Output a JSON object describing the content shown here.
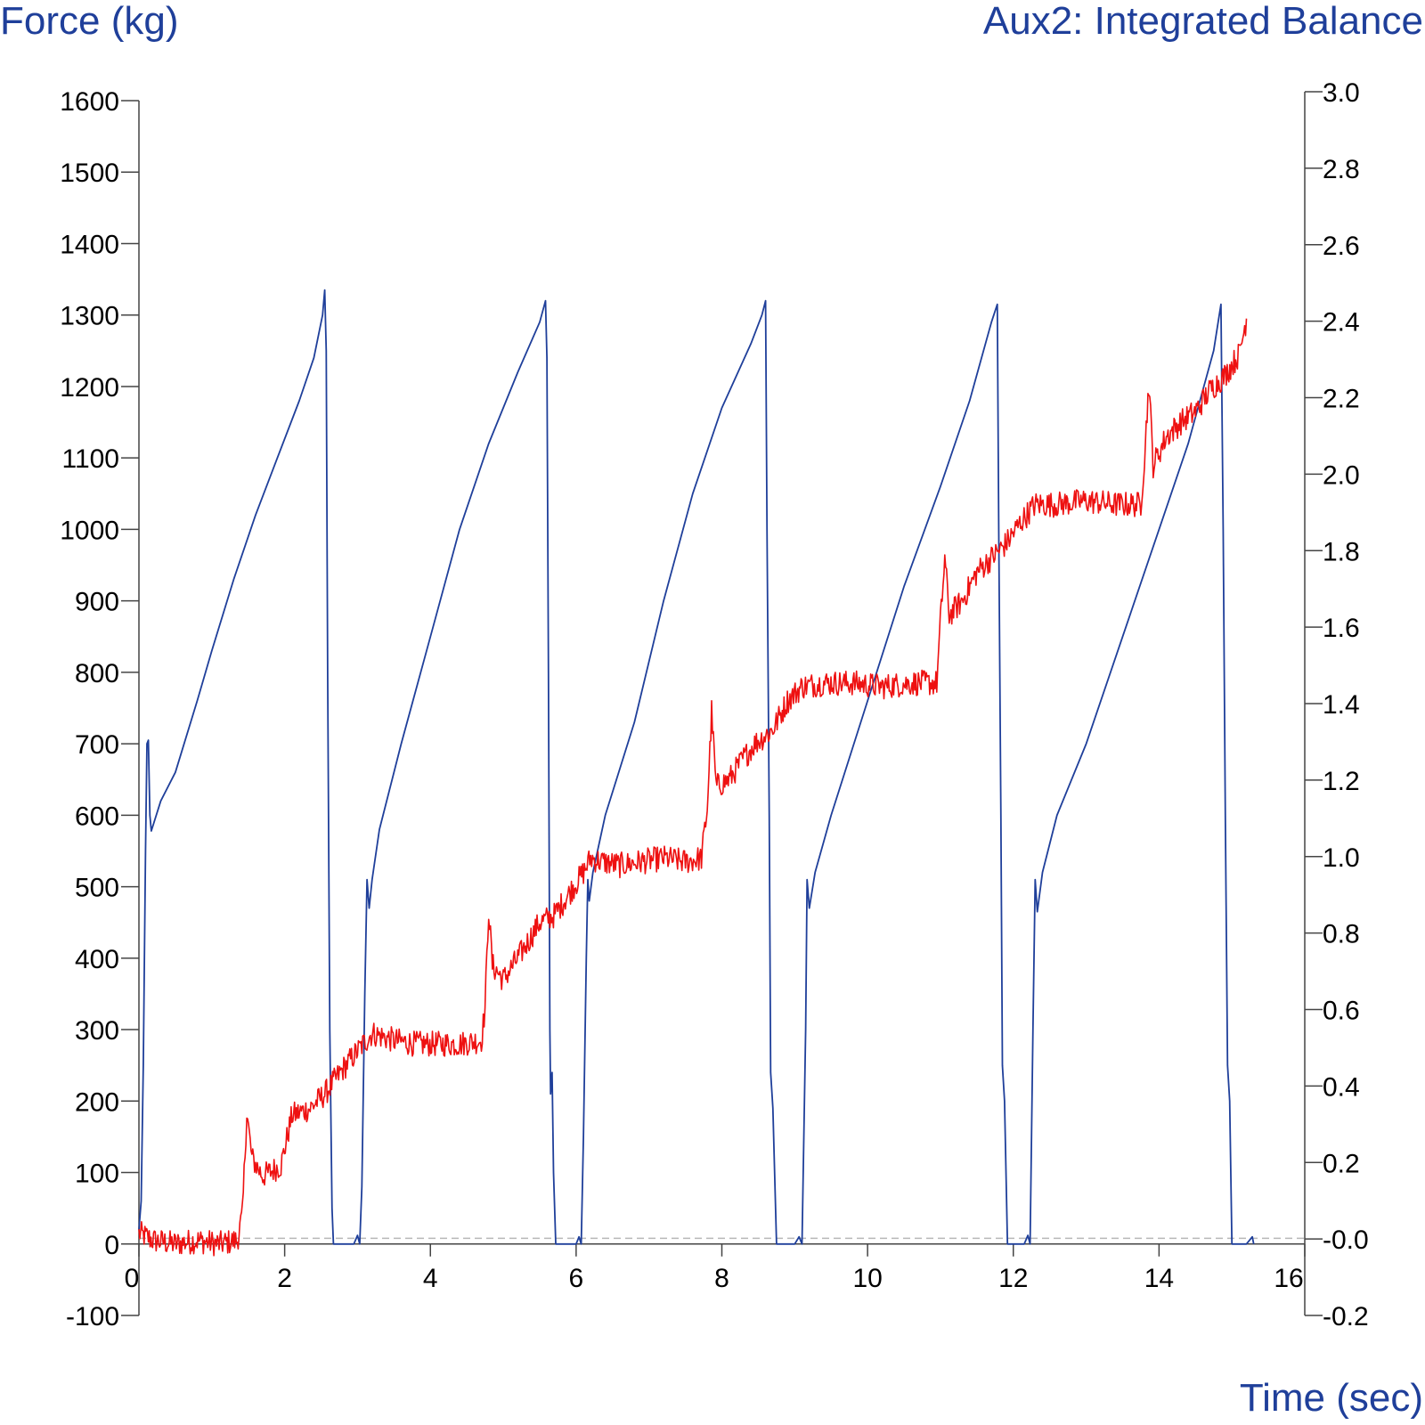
{
  "chart_data": {
    "type": "line",
    "title": "",
    "xlabel": "Time (sec)",
    "ylabel_left": "Force (kg)",
    "ylabel_right": "Aux2: Integrated Balance",
    "xlim": [
      0,
      16
    ],
    "ylim_left": [
      -100,
      1600
    ],
    "ylim_right": [
      -0.2,
      3.0
    ],
    "x_ticks": [
      "0",
      "2",
      "4",
      "6",
      "8",
      "10",
      "12",
      "14",
      "16"
    ],
    "y_left_ticks": [
      "-100",
      "0",
      "100",
      "200",
      "300",
      "400",
      "500",
      "600",
      "700",
      "800",
      "900",
      "1000",
      "1100",
      "1200",
      "1300",
      "1400",
      "1500",
      "1600"
    ],
    "y_right_ticks": [
      "-0.2",
      "-0.0",
      "0.2",
      "0.4",
      "0.6",
      "0.8",
      "1.0",
      "1.2",
      "1.4",
      "1.6",
      "1.8",
      "2.0",
      "2.2",
      "2.4",
      "2.6",
      "2.8",
      "3.0"
    ],
    "grid": false,
    "reference_line": {
      "axis": "left",
      "y": 8,
      "style": "dashed",
      "color": "#b8b8b8"
    },
    "series": [
      {
        "axis": "left",
        "color": "#1f3f9a",
        "points": [
          [
            0.0,
            20
          ],
          [
            0.03,
            60
          ],
          [
            0.06,
            250
          ],
          [
            0.09,
            550
          ],
          [
            0.11,
            700
          ],
          [
            0.13,
            705
          ],
          [
            0.15,
            600
          ],
          [
            0.17,
            578
          ],
          [
            0.3,
            620
          ],
          [
            0.5,
            660
          ],
          [
            0.8,
            760
          ],
          [
            1.0,
            830
          ],
          [
            1.3,
            930
          ],
          [
            1.6,
            1020
          ],
          [
            1.9,
            1100
          ],
          [
            2.2,
            1180
          ],
          [
            2.4,
            1240
          ],
          [
            2.52,
            1300
          ],
          [
            2.55,
            1335
          ],
          [
            2.57,
            1250
          ],
          [
            2.59,
            800
          ],
          [
            2.62,
            300
          ],
          [
            2.65,
            50
          ],
          [
            2.67,
            0
          ],
          [
            2.8,
            0
          ],
          [
            2.95,
            0
          ],
          [
            3.0,
            12
          ],
          [
            3.03,
            0
          ],
          [
            3.06,
            80
          ],
          [
            3.1,
            350
          ],
          [
            3.13,
            510
          ],
          [
            3.16,
            470
          ],
          [
            3.2,
            510
          ],
          [
            3.3,
            580
          ],
          [
            3.6,
            700
          ],
          [
            4.0,
            850
          ],
          [
            4.4,
            1000
          ],
          [
            4.8,
            1120
          ],
          [
            5.2,
            1220
          ],
          [
            5.5,
            1290
          ],
          [
            5.58,
            1320
          ],
          [
            5.6,
            1240
          ],
          [
            5.62,
            800
          ],
          [
            5.64,
            300
          ],
          [
            5.65,
            210
          ],
          [
            5.67,
            240
          ],
          [
            5.69,
            100
          ],
          [
            5.72,
            0
          ],
          [
            6.0,
            0
          ],
          [
            6.04,
            10
          ],
          [
            6.07,
            0
          ],
          [
            6.1,
            150
          ],
          [
            6.14,
            400
          ],
          [
            6.16,
            510
          ],
          [
            6.18,
            480
          ],
          [
            6.23,
            520
          ],
          [
            6.4,
            600
          ],
          [
            6.8,
            730
          ],
          [
            7.2,
            900
          ],
          [
            7.6,
            1050
          ],
          [
            8.0,
            1170
          ],
          [
            8.4,
            1260
          ],
          [
            8.55,
            1300
          ],
          [
            8.6,
            1320
          ],
          [
            8.62,
            1000
          ],
          [
            8.65,
            600
          ],
          [
            8.67,
            240
          ],
          [
            8.7,
            190
          ],
          [
            8.75,
            0
          ],
          [
            9.0,
            0
          ],
          [
            9.06,
            10
          ],
          [
            9.1,
            0
          ],
          [
            9.15,
            300
          ],
          [
            9.17,
            510
          ],
          [
            9.2,
            470
          ],
          [
            9.28,
            520
          ],
          [
            9.5,
            600
          ],
          [
            10.0,
            760
          ],
          [
            10.5,
            920
          ],
          [
            11.0,
            1060
          ],
          [
            11.4,
            1180
          ],
          [
            11.7,
            1290
          ],
          [
            11.78,
            1315
          ],
          [
            11.8,
            1000
          ],
          [
            11.83,
            600
          ],
          [
            11.85,
            250
          ],
          [
            11.88,
            200
          ],
          [
            11.92,
            0
          ],
          [
            12.15,
            0
          ],
          [
            12.2,
            12
          ],
          [
            12.23,
            0
          ],
          [
            12.27,
            300
          ],
          [
            12.3,
            510
          ],
          [
            12.33,
            465
          ],
          [
            12.4,
            520
          ],
          [
            12.6,
            600
          ],
          [
            13.0,
            700
          ],
          [
            13.5,
            850
          ],
          [
            14.0,
            1000
          ],
          [
            14.4,
            1120
          ],
          [
            14.75,
            1250
          ],
          [
            14.85,
            1315
          ],
          [
            14.88,
            1000
          ],
          [
            14.91,
            600
          ],
          [
            14.94,
            250
          ],
          [
            14.97,
            200
          ],
          [
            15.0,
            0
          ],
          [
            15.2,
            0
          ],
          [
            15.28,
            10
          ],
          [
            15.3,
            0
          ]
        ]
      },
      {
        "axis": "left",
        "color": "#ee1111",
        "points": [
          [
            0.0,
            15
          ],
          [
            0.2,
            5
          ],
          [
            0.5,
            0
          ],
          [
            0.8,
            5
          ],
          [
            1.1,
            0
          ],
          [
            1.35,
            5
          ],
          [
            1.42,
            40
          ],
          [
            1.48,
            185
          ],
          [
            1.55,
            120
          ],
          [
            1.7,
            95
          ],
          [
            1.95,
            110
          ],
          [
            2.1,
            180
          ],
          [
            2.35,
            190
          ],
          [
            2.55,
            210
          ],
          [
            2.8,
            245
          ],
          [
            3.0,
            270
          ],
          [
            3.2,
            295
          ],
          [
            3.5,
            285
          ],
          [
            3.8,
            280
          ],
          [
            4.1,
            280
          ],
          [
            4.4,
            280
          ],
          [
            4.7,
            285
          ],
          [
            4.75,
            330
          ],
          [
            4.8,
            470
          ],
          [
            4.85,
            390
          ],
          [
            5.0,
            370
          ],
          [
            5.2,
            400
          ],
          [
            5.5,
            450
          ],
          [
            5.7,
            460
          ],
          [
            5.9,
            490
          ],
          [
            6.1,
            520
          ],
          [
            6.2,
            540
          ],
          [
            6.35,
            535
          ],
          [
            6.6,
            530
          ],
          [
            6.9,
            535
          ],
          [
            7.2,
            540
          ],
          [
            7.5,
            535
          ],
          [
            7.72,
            540
          ],
          [
            7.8,
            610
          ],
          [
            7.86,
            745
          ],
          [
            7.92,
            640
          ],
          [
            8.1,
            650
          ],
          [
            8.3,
            680
          ],
          [
            8.45,
            700
          ],
          [
            8.7,
            720
          ],
          [
            8.9,
            760
          ],
          [
            9.1,
            780
          ],
          [
            9.4,
            785
          ],
          [
            9.8,
            785
          ],
          [
            10.2,
            780
          ],
          [
            10.6,
            785
          ],
          [
            10.95,
            785
          ],
          [
            11.0,
            870
          ],
          [
            11.06,
            960
          ],
          [
            11.12,
            880
          ],
          [
            11.3,
            900
          ],
          [
            11.5,
            940
          ],
          [
            11.7,
            960
          ],
          [
            11.9,
            980
          ],
          [
            12.1,
            1010
          ],
          [
            12.3,
            1035
          ],
          [
            12.6,
            1035
          ],
          [
            13.0,
            1040
          ],
          [
            13.4,
            1035
          ],
          [
            13.75,
            1035
          ],
          [
            13.8,
            1100
          ],
          [
            13.86,
            1205
          ],
          [
            13.92,
            1090
          ],
          [
            14.1,
            1130
          ],
          [
            14.3,
            1150
          ],
          [
            14.5,
            1165
          ],
          [
            14.7,
            1195
          ],
          [
            14.9,
            1215
          ],
          [
            15.1,
            1245
          ],
          [
            15.2,
            1295
          ]
        ],
        "noise": true
      }
    ]
  }
}
